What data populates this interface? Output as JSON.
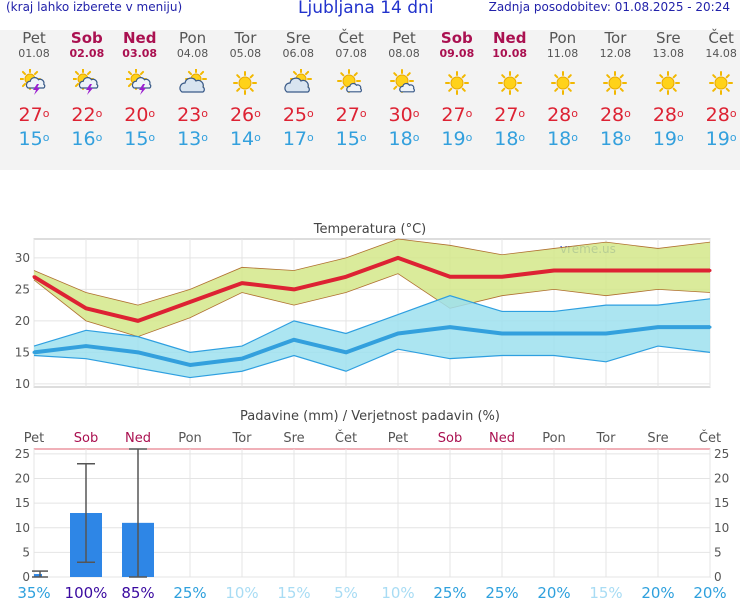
{
  "header": {
    "menu_note": "(kraj lahko izberete v meniju)",
    "title": "Ljubljana 14 dni",
    "updated": "Zadnja posodobitev: 01.08.2025 - 20:24"
  },
  "days": [
    {
      "name": "Pet",
      "date": "01.08",
      "weekend": false,
      "icon": "sun-cloud-thunder-icon",
      "tmax": "27",
      "tmin": "15"
    },
    {
      "name": "Sob",
      "date": "02.08",
      "weekend": true,
      "icon": "sun-cloud-thunder-icon",
      "tmax": "22",
      "tmin": "16"
    },
    {
      "name": "Ned",
      "date": "03.08",
      "weekend": true,
      "icon": "sun-cloud-thunder-icon",
      "tmax": "20",
      "tmin": "15"
    },
    {
      "name": "Pon",
      "date": "04.08",
      "weekend": false,
      "icon": "cloud-sun-icon",
      "tmax": "23",
      "tmin": "13"
    },
    {
      "name": "Tor",
      "date": "05.08",
      "weekend": false,
      "icon": "sun-icon",
      "tmax": "26",
      "tmin": "14"
    },
    {
      "name": "Sre",
      "date": "06.08",
      "weekend": false,
      "icon": "cloud-sun-icon",
      "tmax": "25",
      "tmin": "17"
    },
    {
      "name": "Čet",
      "date": "07.08",
      "weekend": false,
      "icon": "sun-small-cloud-icon",
      "tmax": "27",
      "tmin": "15"
    },
    {
      "name": "Pet",
      "date": "08.08",
      "weekend": false,
      "icon": "sun-small-cloud-icon",
      "tmax": "30",
      "tmin": "18"
    },
    {
      "name": "Sob",
      "date": "09.08",
      "weekend": true,
      "icon": "sun-icon",
      "tmax": "27",
      "tmin": "19"
    },
    {
      "name": "Ned",
      "date": "10.08",
      "weekend": true,
      "icon": "sun-icon",
      "tmax": "27",
      "tmin": "18"
    },
    {
      "name": "Pon",
      "date": "11.08",
      "weekend": false,
      "icon": "sun-icon",
      "tmax": "28",
      "tmin": "18"
    },
    {
      "name": "Tor",
      "date": "12.08",
      "weekend": false,
      "icon": "sun-icon",
      "tmax": "28",
      "tmin": "18"
    },
    {
      "name": "Sre",
      "date": "13.08",
      "weekend": false,
      "icon": "sun-icon",
      "tmax": "28",
      "tmin": "19"
    },
    {
      "name": "Čet",
      "date": "14.08",
      "weekend": false,
      "icon": "sun-icon",
      "tmax": "28",
      "tmin": "19"
    }
  ],
  "deg_symbol": "o",
  "colors": {
    "weekend": "#aa1050",
    "tmax": "#dd2233",
    "tmin": "#33a0dd",
    "max_band": "#d4e88a",
    "min_band": "#9ee0ee",
    "bar": "#2e86e6",
    "prob_high": "#3a0aa0",
    "prob_mid": "#2ea0dd",
    "prob_low": "#a8dcf4"
  },
  "chart_data": [
    {
      "type": "line",
      "title": "Temperatura (°C)",
      "watermark": "vreme.us",
      "categories": [
        "01.08",
        "02.08",
        "03.08",
        "04.08",
        "05.08",
        "06.08",
        "07.08",
        "08.08",
        "09.08",
        "10.08",
        "11.08",
        "12.08",
        "13.08",
        "14.08"
      ],
      "ylim": [
        9.5,
        33
      ],
      "yticks": [
        10,
        15,
        20,
        25,
        30
      ],
      "grid": true,
      "series": [
        {
          "role": "max",
          "values": [
            27,
            22,
            20,
            23,
            26,
            25,
            27,
            30,
            27,
            27,
            28,
            28,
            28,
            28
          ],
          "band_low": [
            26.5,
            20,
            17.5,
            20.5,
            24.5,
            22.5,
            24.5,
            27.5,
            22,
            24,
            25,
            24,
            25,
            24.5
          ],
          "band_high": [
            28,
            24.5,
            22.5,
            25,
            28.5,
            28,
            30,
            33,
            32,
            30.5,
            31.5,
            32.5,
            31.5,
            32.5
          ]
        },
        {
          "role": "min",
          "values": [
            15,
            16,
            15,
            13,
            14,
            17,
            15,
            18,
            19,
            18,
            18,
            18,
            19,
            19
          ],
          "band_low": [
            14.5,
            14,
            12.5,
            11,
            12,
            14.5,
            12,
            15.5,
            14,
            14.5,
            14.5,
            13.5,
            16,
            15
          ],
          "band_high": [
            16,
            18.5,
            17.5,
            15,
            16,
            20,
            18,
            21,
            24,
            21.5,
            21.5,
            22.5,
            22.5,
            23.5
          ]
        }
      ]
    },
    {
      "type": "bar",
      "title": "Padavine (mm) / Verjetnost padavin (%)",
      "categories": [
        "Pet",
        "Sob",
        "Ned",
        "Pon",
        "Tor",
        "Sre",
        "Čet",
        "Pet",
        "Sob",
        "Ned",
        "Pon",
        "Tor",
        "Sre",
        "Čet"
      ],
      "weekend": [
        false,
        true,
        true,
        false,
        false,
        false,
        false,
        false,
        true,
        true,
        false,
        false,
        false,
        false
      ],
      "ylim": [
        0,
        26
      ],
      "yticks": [
        0,
        5,
        10,
        15,
        20,
        25
      ],
      "values": [
        0.6,
        13,
        11,
        0,
        0,
        0,
        0,
        0,
        0,
        0,
        0,
        0,
        0,
        0
      ],
      "err_low": [
        0,
        3,
        0,
        0,
        0,
        0,
        0,
        0,
        0,
        0,
        0,
        0,
        0,
        0
      ],
      "err_high": [
        1.2,
        23,
        26,
        0,
        0,
        0,
        0,
        0,
        0,
        0,
        0,
        0,
        0,
        0
      ],
      "probability": [
        "35%",
        "100%",
        "85%",
        "25%",
        "10%",
        "15%",
        "5%",
        "10%",
        "25%",
        "25%",
        "20%",
        "15%",
        "20%",
        "20%"
      ],
      "probability_values": [
        35,
        100,
        85,
        25,
        10,
        15,
        5,
        10,
        25,
        25,
        20,
        15,
        20,
        20
      ]
    }
  ]
}
